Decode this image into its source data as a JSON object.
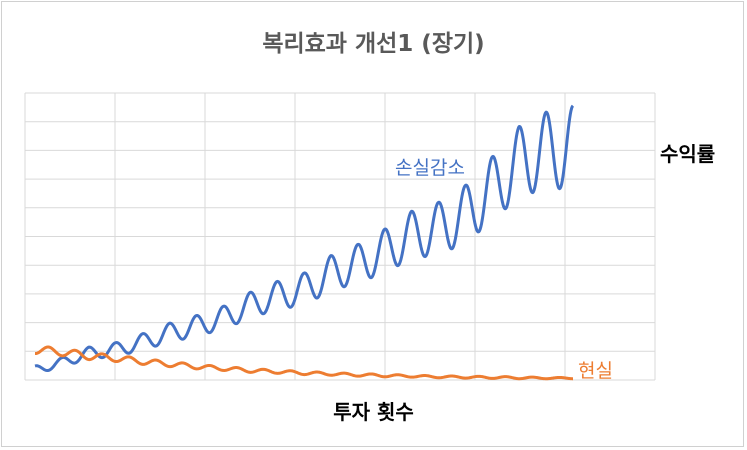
{
  "chart_data": {
    "type": "line",
    "title": "복리효과 개선1 (장기)",
    "xlabel": "투자 횟수",
    "ylabel": "수익률",
    "grid": true,
    "legend": "inline labels at series ends",
    "x": [
      0,
      1,
      2,
      3,
      4,
      5,
      6,
      7,
      8,
      9,
      10,
      11,
      12,
      13,
      14,
      15,
      16,
      17,
      18,
      19,
      20
    ],
    "xlim": [
      0,
      20
    ],
    "ylim": [
      0,
      9
    ],
    "series": [
      {
        "name": "손실감소",
        "color": "#4472C4",
        "values": [
          0.32,
          0.55,
          0.85,
          0.95,
          1.2,
          1.48,
          1.7,
          1.95,
          2.35,
          2.65,
          2.85,
          3.35,
          3.65,
          4.05,
          4.55,
          4.75,
          5.2,
          6.0,
          6.85,
          7.2,
          7.3
        ],
        "oscillation_amplitude": [
          0.12,
          0.15,
          0.18,
          0.22,
          0.25,
          0.3,
          0.32,
          0.36,
          0.4,
          0.44,
          0.5,
          0.55,
          0.6,
          0.68,
          0.74,
          0.82,
          0.9,
          1.0,
          1.1,
          1.2,
          1.3
        ]
      },
      {
        "name": "현실",
        "color": "#ED7D31",
        "values": [
          0.95,
          0.88,
          0.75,
          0.68,
          0.58,
          0.5,
          0.42,
          0.36,
          0.3,
          0.26,
          0.22,
          0.19,
          0.16,
          0.14,
          0.12,
          0.1,
          0.09,
          0.08,
          0.07,
          0.06,
          0.06
        ],
        "oscillation_amplitude": [
          0.12,
          0.12,
          0.11,
          0.1,
          0.09,
          0.08,
          0.07,
          0.06,
          0.06,
          0.05,
          0.05,
          0.04,
          0.04,
          0.04,
          0.03,
          0.03,
          0.03,
          0.03,
          0.03,
          0.02,
          0.02
        ]
      }
    ]
  }
}
